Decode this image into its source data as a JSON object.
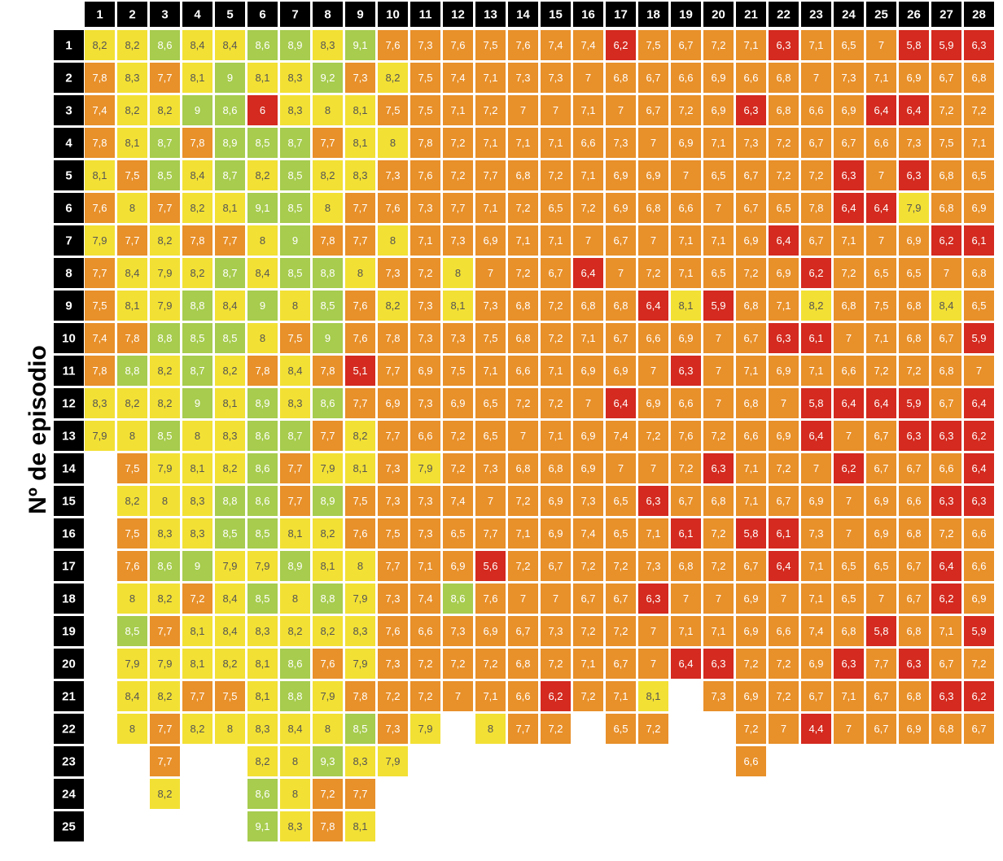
{
  "chart_data": {
    "type": "heatmap",
    "ylabel": "Nº de episodio",
    "columns": [
      "1",
      "2",
      "3",
      "4",
      "5",
      "6",
      "7",
      "8",
      "9",
      "10",
      "11",
      "12",
      "13",
      "14",
      "15",
      "16",
      "17",
      "18",
      "19",
      "20",
      "21",
      "22",
      "23",
      "24",
      "25",
      "26",
      "27",
      "28"
    ],
    "rows": [
      "1",
      "2",
      "3",
      "4",
      "5",
      "6",
      "7",
      "8",
      "9",
      "10",
      "11",
      "12",
      "13",
      "14",
      "15",
      "16",
      "17",
      "18",
      "19",
      "20",
      "21",
      "22",
      "23",
      "24",
      "25"
    ],
    "values": [
      [
        "8,2",
        "8,2",
        "8,6",
        "8,4",
        "8,4",
        "8,6",
        "8,9",
        "8,3",
        "9,1",
        "7,6",
        "7,3",
        "7,6",
        "7,5",
        "7,6",
        "7,4",
        "7,4",
        "6,2",
        "7,5",
        "6,7",
        "7,2",
        "7,1",
        "6,3",
        "7,1",
        "6,5",
        "7",
        "5,8",
        "5,9",
        "6,3"
      ],
      [
        "7,8",
        "8,3",
        "7,7",
        "8,1",
        "9",
        "8,1",
        "8,3",
        "9,2",
        "7,3",
        "8,2",
        "7,5",
        "7,4",
        "7,1",
        "7,3",
        "7,3",
        "7",
        "6,8",
        "6,7",
        "6,6",
        "6,9",
        "6,6",
        "6,8",
        "7",
        "7,3",
        "7,1",
        "6,9",
        "6,7",
        "6,8"
      ],
      [
        "7,4",
        "8,2",
        "8,2",
        "9",
        "8,6",
        "6",
        "8,3",
        "8",
        "8,1",
        "7,5",
        "7,5",
        "7,1",
        "7,2",
        "7",
        "7",
        "7,1",
        "7",
        "6,7",
        "7,2",
        "6,9",
        "6,3",
        "6,8",
        "6,6",
        "6,9",
        "6,4",
        "6,4",
        "7,2",
        "7,2"
      ],
      [
        "7,8",
        "8,1",
        "8,7",
        "7,8",
        "8,9",
        "8,5",
        "8,7",
        "7,7",
        "8,1",
        "8",
        "7,8",
        "7,2",
        "7,1",
        "7,1",
        "7,1",
        "6,6",
        "7,3",
        "7",
        "6,9",
        "7,1",
        "7,3",
        "7,2",
        "6,7",
        "6,7",
        "6,6",
        "7,3",
        "7,5",
        "7,1"
      ],
      [
        "8,1",
        "7,5",
        "8,5",
        "8,4",
        "8,7",
        "8,2",
        "8,5",
        "8,2",
        "8,3",
        "7,3",
        "7,6",
        "7,2",
        "7,7",
        "6,8",
        "7,2",
        "7,1",
        "6,9",
        "6,9",
        "7",
        "6,5",
        "6,7",
        "7,2",
        "7,2",
        "6,3",
        "7",
        "6,3",
        "6,8",
        "6,5"
      ],
      [
        "7,6",
        "8",
        "7,7",
        "8,2",
        "8,1",
        "9,1",
        "8,5",
        "8",
        "7,7",
        "7,6",
        "7,3",
        "7,7",
        "7,1",
        "7,2",
        "6,5",
        "7,2",
        "6,9",
        "6,8",
        "6,6",
        "7",
        "6,7",
        "6,5",
        "7,8",
        "6,4",
        "6,4",
        "7,9",
        "6,8",
        "6,9"
      ],
      [
        "7,9",
        "7,7",
        "8,2",
        "7,8",
        "7,7",
        "8",
        "9",
        "7,8",
        "7,7",
        "8",
        "7,1",
        "7,3",
        "6,9",
        "7,1",
        "7,1",
        "7",
        "6,7",
        "7",
        "7,1",
        "7,1",
        "6,9",
        "6,4",
        "6,7",
        "7,1",
        "7",
        "6,9",
        "6,2",
        "6,1"
      ],
      [
        "7,7",
        "8,4",
        "7,9",
        "8,2",
        "8,7",
        "8,4",
        "8,5",
        "8,8",
        "8",
        "7,3",
        "7,2",
        "8",
        "7",
        "7,2",
        "6,7",
        "6,4",
        "7",
        "7,2",
        "7,1",
        "6,5",
        "7,2",
        "6,9",
        "6,2",
        "7,2",
        "6,5",
        "6,5",
        "7",
        "6,8"
      ],
      [
        "7,5",
        "8,1",
        "7,9",
        "8,8",
        "8,4",
        "9",
        "8",
        "8,5",
        "7,6",
        "8,2",
        "7,3",
        "8,1",
        "7,3",
        "6,8",
        "7,2",
        "6,8",
        "6,8",
        "6,4",
        "8,1",
        "5,9",
        "6,8",
        "7,1",
        "8,2",
        "6,8",
        "7,5",
        "6,8",
        "8,4",
        "6,5"
      ],
      [
        "7,4",
        "7,8",
        "8,8",
        "8,5",
        "8,5",
        "8",
        "7,5",
        "9",
        "7,6",
        "7,8",
        "7,3",
        "7,3",
        "7,5",
        "6,8",
        "7,2",
        "7,1",
        "6,7",
        "6,6",
        "6,9",
        "7",
        "6,7",
        "6,3",
        "6,1",
        "7",
        "7,1",
        "6,8",
        "6,7",
        "5,9"
      ],
      [
        "7,8",
        "8,8",
        "8,2",
        "8,7",
        "8,2",
        "7,8",
        "8,4",
        "7,8",
        "5,1",
        "7,7",
        "6,9",
        "7,5",
        "7,1",
        "6,6",
        "7,1",
        "6,9",
        "6,9",
        "7",
        "6,3",
        "7",
        "7,1",
        "6,9",
        "7,1",
        "6,6",
        "7,2",
        "7,2",
        "6,8",
        "7"
      ],
      [
        "8,3",
        "8,2",
        "8,2",
        "9",
        "8,1",
        "8,9",
        "8,3",
        "8,6",
        "7,7",
        "6,9",
        "7,3",
        "6,9",
        "6,5",
        "7,2",
        "7,2",
        "7",
        "6,4",
        "6,9",
        "6,6",
        "7",
        "6,8",
        "7",
        "5,8",
        "6,4",
        "6,4",
        "5,9",
        "6,7",
        "6,4"
      ],
      [
        "7,9",
        "8",
        "8,5",
        "8",
        "8,3",
        "8,6",
        "8,7",
        "7,7",
        "8,2",
        "7,7",
        "6,6",
        "7,2",
        "6,5",
        "7",
        "7,1",
        "6,9",
        "7,4",
        "7,2",
        "7,6",
        "7,2",
        "6,6",
        "6,9",
        "6,4",
        "7",
        "6,7",
        "6,3",
        "6,3",
        "6,2"
      ],
      [
        null,
        "7,5",
        "7,9",
        "8,1",
        "8,2",
        "8,6",
        "7,7",
        "7,9",
        "8,1",
        "7,3",
        "7,9",
        "7,2",
        "7,3",
        "6,8",
        "6,8",
        "6,9",
        "7",
        "7",
        "7,2",
        "6,3",
        "7,1",
        "7,2",
        "7",
        "6,2",
        "6,7",
        "6,7",
        "6,6",
        "6,4"
      ],
      [
        null,
        "8,2",
        "8",
        "8,3",
        "8,8",
        "8,6",
        "7,7",
        "8,9",
        "7,5",
        "7,3",
        "7,3",
        "7,4",
        "7",
        "7,2",
        "6,9",
        "7,3",
        "6,5",
        "6,3",
        "6,7",
        "6,8",
        "7,1",
        "6,7",
        "6,9",
        "7",
        "6,9",
        "6,6",
        "6,3",
        "6,3"
      ],
      [
        null,
        "7,5",
        "8,3",
        "8,3",
        "8,5",
        "8,5",
        "8,1",
        "8,2",
        "7,6",
        "7,5",
        "7,3",
        "6,5",
        "7,7",
        "7,1",
        "6,9",
        "7,4",
        "6,5",
        "7,1",
        "6,1",
        "7,2",
        "5,8",
        "6,1",
        "7,3",
        "7",
        "6,9",
        "6,8",
        "7,2",
        "6,6"
      ],
      [
        null,
        "7,6",
        "8,6",
        "9",
        "7,9",
        "7,9",
        "8,9",
        "8,1",
        "8",
        "7,7",
        "7,1",
        "6,9",
        "5,6",
        "7,2",
        "6,7",
        "7,2",
        "7,2",
        "7,3",
        "6,8",
        "7,2",
        "6,7",
        "6,4",
        "7,1",
        "6,5",
        "6,5",
        "6,7",
        "6,4",
        "6,6"
      ],
      [
        null,
        "8",
        "8,2",
        "7,2",
        "8,4",
        "8,5",
        "8",
        "8,8",
        "7,9",
        "7,3",
        "7,4",
        "8,6",
        "7,6",
        "7",
        "7",
        "6,7",
        "6,7",
        "6,3",
        "7",
        "7",
        "6,9",
        "7",
        "7,1",
        "6,5",
        "7",
        "6,7",
        "6,2",
        "6,9"
      ],
      [
        null,
        "8,5",
        "7,7",
        "8,1",
        "8,4",
        "8,3",
        "8,2",
        "8,2",
        "8,3",
        "7,6",
        "6,6",
        "7,3",
        "6,9",
        "6,7",
        "7,3",
        "7,2",
        "7,2",
        "7",
        "7,1",
        "7,1",
        "6,9",
        "6,6",
        "7,4",
        "6,8",
        "5,8",
        "6,8",
        "7,1",
        "5,9"
      ],
      [
        null,
        "7,9",
        "7,9",
        "8,1",
        "8,2",
        "8,1",
        "8,6",
        "7,6",
        "7,9",
        "7,3",
        "7,2",
        "7,2",
        "7,2",
        "6,8",
        "7,2",
        "7,1",
        "6,7",
        "7",
        "6,4",
        "6,3",
        "7,2",
        "7,2",
        "6,9",
        "6,3",
        "7,7",
        "6,3",
        "6,7",
        "7,2"
      ],
      [
        null,
        "8,4",
        "8,2",
        "7,7",
        "7,5",
        "8,1",
        "8,8",
        "7,9",
        "7,8",
        "7,2",
        "7,2",
        "7",
        "7,1",
        "6,6",
        "6,2",
        "7,2",
        "7,1",
        "8,1",
        null,
        "7,3",
        "6,9",
        "7,2",
        "6,7",
        "7,1",
        "6,7",
        "6,8",
        "6,3",
        "6,2"
      ],
      [
        null,
        "8",
        "7,7",
        "8,2",
        "8",
        "8,3",
        "8,4",
        "8",
        "8,5",
        "7,3",
        "7,9",
        null,
        "8",
        "7,7",
        "7,2",
        null,
        "6,5",
        "7,2",
        null,
        null,
        "7,2",
        "7",
        "4,4",
        "7",
        "6,7",
        "6,9",
        "6,8",
        "6,7"
      ],
      [
        null,
        null,
        "7,7",
        null,
        null,
        "8,2",
        "8",
        "9,3",
        "8,3",
        "7,9",
        null,
        null,
        null,
        null,
        null,
        null,
        null,
        null,
        null,
        null,
        "6,6",
        null,
        null,
        null,
        null,
        null,
        null,
        null
      ],
      [
        null,
        null,
        "8,2",
        null,
        null,
        "8,6",
        "8",
        "7,2",
        "7,7",
        null,
        null,
        null,
        null,
        null,
        null,
        null,
        null,
        null,
        null,
        null,
        null,
        null,
        null,
        null,
        null,
        null,
        null,
        null
      ],
      [
        null,
        null,
        null,
        null,
        null,
        "9,1",
        "8,3",
        "7,8",
        "8,1",
        null,
        null,
        null,
        null,
        null,
        null,
        null,
        null,
        null,
        null,
        null,
        null,
        null,
        null,
        null,
        null,
        null,
        null,
        null
      ]
    ],
    "color_scale": [
      {
        "min": 8.5,
        "color": "#a7cc4e",
        "text": "#ffffff"
      },
      {
        "min": 7.9,
        "color": "#f2e034",
        "text": "#555555"
      },
      {
        "min": 6.5,
        "color": "#e8902a",
        "text": "#ffffff"
      },
      {
        "min": 0,
        "color": "#d42a1f",
        "text": "#ffffff"
      }
    ],
    "grid": false,
    "legend": "none"
  }
}
